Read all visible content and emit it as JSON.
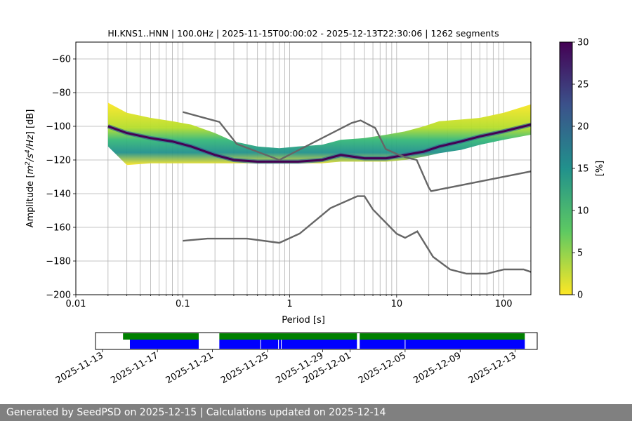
{
  "chart_data": [
    {
      "type": "heatmap",
      "title": "HI.KNS1..HNN | 100.0Hz | 2025-11-15T00:00:02 - 2025-12-13T22:30:06 | 1262 segments",
      "xlabel": "Period [s]",
      "ylabel": "Amplitude [m²/s⁴/Hz] [dB]",
      "ylabel_parts": {
        "pre": "Amplitude [",
        "m": "m",
        "sup2": "2",
        "s": "/s",
        "sup4": "4",
        "hz": "/Hz",
        "post": "] [dB]"
      },
      "x_scale": "log",
      "xlim": [
        0.01,
        180
      ],
      "ylim": [
        -200,
        -50
      ],
      "x_ticks": [
        0.01,
        0.1,
        1,
        10,
        100
      ],
      "x_tick_labels": [
        "0.01",
        "0.1",
        "1",
        "10",
        "100"
      ],
      "y_ticks": [
        -200,
        -180,
        -160,
        -140,
        -120,
        -100,
        -80,
        -60
      ],
      "y_tick_labels": [
        "−200",
        "−180",
        "−160",
        "−140",
        "−120",
        "−100",
        "−80",
        "−60"
      ],
      "grid": true,
      "colorbar": {
        "label": "[%]",
        "range": [
          0,
          30
        ],
        "ticks": [
          0,
          5,
          10,
          15,
          20,
          25,
          30
        ],
        "tick_labels": [
          "0",
          "5",
          "10",
          "15",
          "20",
          "25",
          "30"
        ],
        "colormap": [
          "#fde725",
          "#5ec962",
          "#21918c",
          "#3b528b",
          "#440154"
        ]
      },
      "reference_curves": [
        {
          "name": "",
          "color": "#666666",
          "x": [
            0.1,
            0.17,
            0.22,
            0.32,
            0.8,
            3.8,
            4.6,
            6.3,
            7.9,
            10,
            12,
            15.4,
            20,
            21,
            200
          ],
          "y": [
            -91.5,
            -95.5,
            -97.4,
            -110.5,
            -120,
            -98,
            -96.5,
            -101,
            -113.5,
            -116.4,
            -118.3,
            -120,
            -136.5,
            -138.5,
            -126.2
          ]
        },
        {
          "name": "",
          "color": "#666666",
          "x": [
            0.1,
            0.17,
            0.4,
            0.8,
            1.24,
            2.4,
            4.3,
            5,
            6,
            10,
            12,
            15.6,
            21.9,
            31.6,
            45,
            70,
            101,
            154,
            200
          ],
          "y": [
            -168,
            -166.7,
            -166.7,
            -169.2,
            -163.7,
            -148.6,
            -141.5,
            -141.5,
            -149.4,
            -163.8,
            -166.2,
            -162.4,
            -177.5,
            -185,
            -187.5,
            -187.5,
            -185,
            -185,
            -187.5
          ]
        }
      ],
      "density": {
        "x": [
          0.02,
          0.03,
          0.05,
          0.08,
          0.12,
          0.2,
          0.3,
          0.5,
          0.8,
          1.2,
          2,
          3,
          5,
          8,
          12,
          18,
          25,
          40,
          60,
          100,
          180
        ],
        "mode_y": [
          -100,
          -104,
          -107,
          -109,
          -112,
          -117,
          -120,
          -121,
          -121,
          -121,
          -120,
          -117,
          -119,
          -119,
          -117,
          -115,
          -112,
          -109,
          -106,
          -103,
          -99
        ],
        "upper_y": [
          -86,
          -92,
          -95,
          -97,
          -99,
          -104,
          -109,
          -112,
          -113,
          -112,
          -111,
          -108,
          -107,
          -105,
          -103,
          -100,
          -97,
          -96,
          -95,
          -92,
          -87
        ],
        "lower_y": [
          -112,
          -123,
          -122,
          -122,
          -122,
          -122,
          -122,
          -122,
          -122,
          -122,
          -122,
          -121,
          -121,
          -121,
          -120,
          -118,
          -116,
          -114,
          -111,
          -108,
          -105
        ]
      }
    },
    {
      "type": "bar",
      "x_dates": [
        "2025-11-13",
        "2025-11-17",
        "2025-11-21",
        "2025-11-25",
        "2025-11-29",
        "2025-12-01",
        "2025-12-05",
        "2025-12-09",
        "2025-12-13"
      ],
      "xlim": [
        "2025-11-12.5",
        "2025-12-14.6"
      ],
      "rows": [
        {
          "name": "",
          "color": "#008000",
          "intervals": [
            [
              "2025-11-14.5",
              "2025-11-20.0"
            ],
            [
              "2025-11-21.5",
              "2025-12-01.5"
            ],
            [
              "2025-12-01.7",
              "2025-12-13.7"
            ]
          ]
        },
        {
          "name": "",
          "color": "#0000ff",
          "intervals": [
            [
              "2025-11-15.0",
              "2025-11-20.0"
            ],
            [
              "2025-11-21.5",
              "2025-12-01.5"
            ],
            [
              "2025-12-01.7",
              "2025-12-13.7"
            ]
          ]
        }
      ],
      "gap_marks": [
        "2025-11-24.5",
        "2025-11-25.8",
        "2025-11-26.0",
        "2025-12-05.0"
      ]
    }
  ],
  "footer": {
    "text": "Generated by SeedPSD on 2025-12-15 | Calculations updated on 2025-12-14"
  }
}
